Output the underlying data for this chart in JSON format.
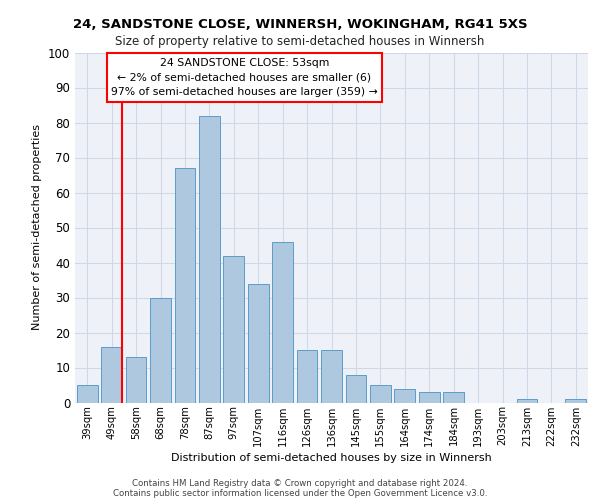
{
  "title1": "24, SANDSTONE CLOSE, WINNERSH, WOKINGHAM, RG41 5XS",
  "title2": "Size of property relative to semi-detached houses in Winnersh",
  "xlabel": "Distribution of semi-detached houses by size in Winnersh",
  "ylabel": "Number of semi-detached properties",
  "categories": [
    "39sqm",
    "49sqm",
    "58sqm",
    "68sqm",
    "78sqm",
    "87sqm",
    "97sqm",
    "107sqm",
    "116sqm",
    "126sqm",
    "136sqm",
    "145sqm",
    "155sqm",
    "164sqm",
    "174sqm",
    "184sqm",
    "193sqm",
    "203sqm",
    "213sqm",
    "222sqm",
    "232sqm"
  ],
  "values": [
    5,
    16,
    13,
    30,
    67,
    82,
    42,
    34,
    46,
    15,
    15,
    8,
    5,
    4,
    3,
    3,
    0,
    0,
    1,
    0,
    1
  ],
  "bar_color": "#aec8e0",
  "bar_edge_color": "#5a9ec9",
  "property_label": "24 SANDSTONE CLOSE: 53sqm",
  "pct_smaller": 2,
  "count_smaller": 6,
  "pct_larger": 97,
  "count_larger": 359,
  "vline_x": 1.425,
  "ylim": [
    0,
    100
  ],
  "yticks": [
    0,
    10,
    20,
    30,
    40,
    50,
    60,
    70,
    80,
    90,
    100
  ],
  "grid_color": "#d0d8e8",
  "background_color": "#eef2f8",
  "footer1": "Contains HM Land Registry data © Crown copyright and database right 2024.",
  "footer2": "Contains public sector information licensed under the Open Government Licence v3.0."
}
